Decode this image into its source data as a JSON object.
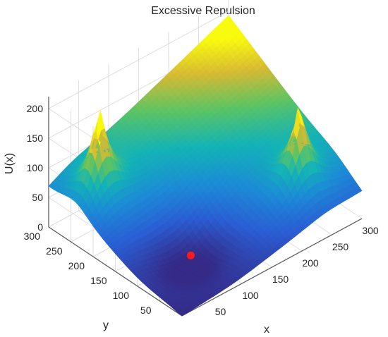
{
  "chart_data": {
    "type": "surface",
    "title": "Excessive Repulsion",
    "xlabel": "x",
    "ylabel": "y",
    "zlabel": "U(x)",
    "xlim": [
      0,
      300
    ],
    "ylim": [
      0,
      300
    ],
    "zlim": [
      0,
      220
    ],
    "x_ticks": [
      "50",
      "100",
      "150",
      "200",
      "250",
      "300"
    ],
    "y_ticks": [
      "50",
      "100",
      "150",
      "200",
      "250",
      "300"
    ],
    "z_ticks": [
      "0",
      "50",
      "100",
      "150",
      "200"
    ],
    "grid": true,
    "colormap": "parula",
    "corner_values": {
      "x0_y0": 0,
      "x300_y0": 45,
      "x0_y300": 65,
      "x300_y300": 193
    },
    "peaks": [
      {
        "x": 40,
        "y": 240,
        "z": 150
      },
      {
        "x": 240,
        "y": 60,
        "z": 140
      }
    ],
    "marker": {
      "x": 85,
      "y": 95,
      "z": 8,
      "color": "#ff1a1a"
    }
  }
}
